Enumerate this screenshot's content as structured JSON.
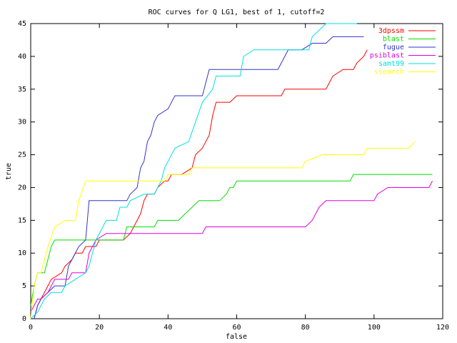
{
  "chart_data": {
    "type": "line",
    "title": "ROC curves for Q LG1, best of 1, cutoff=2",
    "xlabel": "false",
    "ylabel": "true",
    "xlim": [
      0,
      120
    ],
    "xticks": [
      0,
      20,
      40,
      60,
      80,
      100,
      120
    ],
    "ylim": [
      0,
      45
    ],
    "yticks": [
      0,
      5,
      10,
      15,
      20,
      25,
      30,
      35,
      40,
      45
    ],
    "legend": "top-right",
    "series": [
      {
        "name": "3dpssm",
        "color": "#ff0000",
        "x": [
          1,
          2,
          3,
          5,
          6,
          9,
          10,
          12,
          13,
          15,
          16,
          19,
          20,
          27,
          29,
          30,
          31,
          32,
          33,
          34,
          36,
          37,
          39,
          40,
          41,
          44,
          47,
          48,
          50,
          51,
          52,
          53,
          54,
          58,
          60,
          73,
          74,
          86,
          87,
          88,
          91,
          94,
          95,
          97,
          98
        ],
        "values": [
          0,
          2,
          3,
          5,
          6,
          7,
          8,
          9,
          10,
          10,
          11,
          11,
          12,
          12,
          13,
          14,
          15,
          16,
          18,
          19,
          19,
          20,
          21,
          21,
          22,
          22,
          23,
          25,
          26,
          27,
          28,
          31,
          33,
          33,
          34,
          34,
          35,
          35,
          36,
          37,
          38,
          38,
          39,
          40,
          41
        ]
      },
      {
        "name": "blast",
        "color": "#00e000",
        "x": [
          0,
          1,
          2,
          4,
          5,
          6,
          7,
          27,
          28,
          36,
          37,
          43,
          45,
          47,
          49,
          55,
          57,
          58,
          59,
          60,
          93,
          94,
          117
        ],
        "values": [
          2,
          5,
          7,
          7,
          9,
          11,
          12,
          12,
          14,
          14,
          15,
          15,
          16,
          17,
          18,
          18,
          19,
          20,
          20,
          21,
          21,
          22,
          22
        ]
      },
      {
        "name": "fugue",
        "color": "#3333cc",
        "x": [
          1,
          2,
          3,
          5,
          7,
          10,
          11,
          12,
          13,
          14,
          16,
          17,
          28,
          29,
          31,
          32,
          33,
          34,
          35,
          36,
          37,
          40,
          42,
          50,
          51,
          52,
          72,
          75,
          79,
          82,
          86,
          88,
          97
        ],
        "values": [
          0,
          2,
          3,
          4,
          5,
          5,
          8,
          9,
          10,
          11,
          12,
          18,
          18,
          19,
          20,
          23,
          24,
          27,
          28,
          30,
          31,
          32,
          34,
          34,
          36,
          38,
          38,
          41,
          41,
          42,
          42,
          43,
          43
        ]
      },
      {
        "name": "psiblast",
        "color": "#e000e0",
        "x": [
          0,
          1,
          2,
          3,
          5,
          7,
          11,
          12,
          16,
          17,
          19,
          22,
          50,
          51,
          80,
          82,
          84,
          86,
          100,
          101,
          104,
          116,
          117
        ],
        "values": [
          1,
          2,
          3,
          3,
          4,
          6,
          6,
          7,
          7,
          10,
          12,
          13,
          13,
          14,
          14,
          15,
          17,
          18,
          18,
          19,
          20,
          20,
          21
        ]
      },
      {
        "name": "samt99",
        "color": "#00e0e0",
        "x": [
          0,
          2,
          4,
          6,
          9,
          10,
          13,
          16,
          17,
          19,
          22,
          25,
          26,
          28,
          29,
          33,
          36,
          38,
          39,
          41,
          42,
          46,
          48,
          50,
          53,
          54,
          61,
          62,
          65,
          81,
          82,
          86,
          95
        ],
        "values": [
          0,
          1,
          3,
          4,
          4,
          5,
          6,
          7,
          8,
          12,
          15,
          15,
          17,
          17,
          18,
          19,
          19,
          21,
          23,
          25,
          26,
          27,
          30,
          33,
          35,
          37,
          37,
          40,
          41,
          41,
          43,
          45,
          45
        ]
      },
      {
        "name": "ssearch",
        "color": "#ffff00",
        "x": [
          0,
          1,
          2,
          3,
          4,
          5,
          7,
          10,
          13,
          14,
          16,
          39,
          40,
          46,
          47,
          79,
          80,
          85,
          97,
          98,
          110,
          112
        ],
        "values": [
          0,
          5,
          7,
          7,
          9,
          11,
          14,
          15,
          15,
          18,
          21,
          21,
          22,
          22,
          23,
          23,
          24,
          25,
          25,
          26,
          26,
          27
        ]
      }
    ]
  }
}
